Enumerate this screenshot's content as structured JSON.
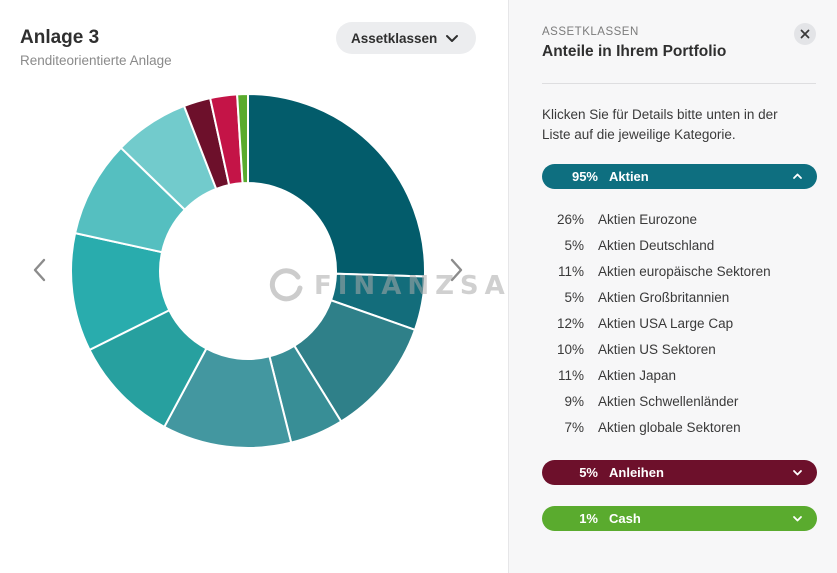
{
  "left": {
    "title": "Anlage 3",
    "subtitle": "Renditeorientierte Anlage",
    "dropdown_label": "Assetklassen",
    "watermark": "FINANZSACHE"
  },
  "right": {
    "kicker": "ASSETKLASSEN",
    "heading": "Anteile in Ihrem Portfolio",
    "description": "Klicken Sie für Details bitte unten in der Liste auf die jeweilige Kategorie.",
    "categories": [
      {
        "pct": "95%",
        "label": "Aktien",
        "color": "#0e6f80",
        "expanded": true
      },
      {
        "pct": "5%",
        "label": "Anleihen",
        "color": "#6d102b",
        "expanded": false
      },
      {
        "pct": "1%",
        "label": "Cash",
        "color": "#5aab2e",
        "expanded": false
      }
    ],
    "aktien_items": [
      {
        "pct": "26%",
        "name": "Aktien Eurozone"
      },
      {
        "pct": "5%",
        "name": "Aktien Deutschland"
      },
      {
        "pct": "11%",
        "name": "Aktien europäische Sektoren"
      },
      {
        "pct": "5%",
        "name": "Aktien Großbritannien"
      },
      {
        "pct": "12%",
        "name": "Aktien USA Large Cap"
      },
      {
        "pct": "10%",
        "name": "Aktien US Sektoren"
      },
      {
        "pct": "11%",
        "name": "Aktien Japan"
      },
      {
        "pct": "9%",
        "name": "Aktien Schwellenländer"
      },
      {
        "pct": "7%",
        "name": "Aktien globale Sektoren"
      }
    ]
  },
  "chart_data": {
    "type": "pie",
    "variant": "donut",
    "title": "",
    "slices": [
      {
        "label": "Aktien Eurozone",
        "value": 26,
        "color": "#035c6b"
      },
      {
        "label": "Aktien Deutschland",
        "value": 5,
        "color": "#136d7b"
      },
      {
        "label": "Aktien europäische Sektoren",
        "value": 11,
        "color": "#2f8089"
      },
      {
        "label": "Aktien Großbritannien",
        "value": 5,
        "color": "#388e96"
      },
      {
        "label": "Aktien USA Large Cap",
        "value": 12,
        "color": "#4397a0"
      },
      {
        "label": "Aktien US Sektoren",
        "value": 10,
        "color": "#27a09f"
      },
      {
        "label": "Aktien Japan",
        "value": 11,
        "color": "#29acad"
      },
      {
        "label": "Aktien Schwellenländer",
        "value": 9,
        "color": "#55bfc0"
      },
      {
        "label": "Aktien globale Sektoren",
        "value": 7,
        "color": "#72cbcc"
      },
      {
        "label": "Anleihen",
        "value": 2.5,
        "color": "#6d102b"
      },
      {
        "label": "Anleihen",
        "value": 2.5,
        "color": "#c41447"
      },
      {
        "label": "Cash",
        "value": 1,
        "color": "#5aab2e"
      }
    ]
  }
}
